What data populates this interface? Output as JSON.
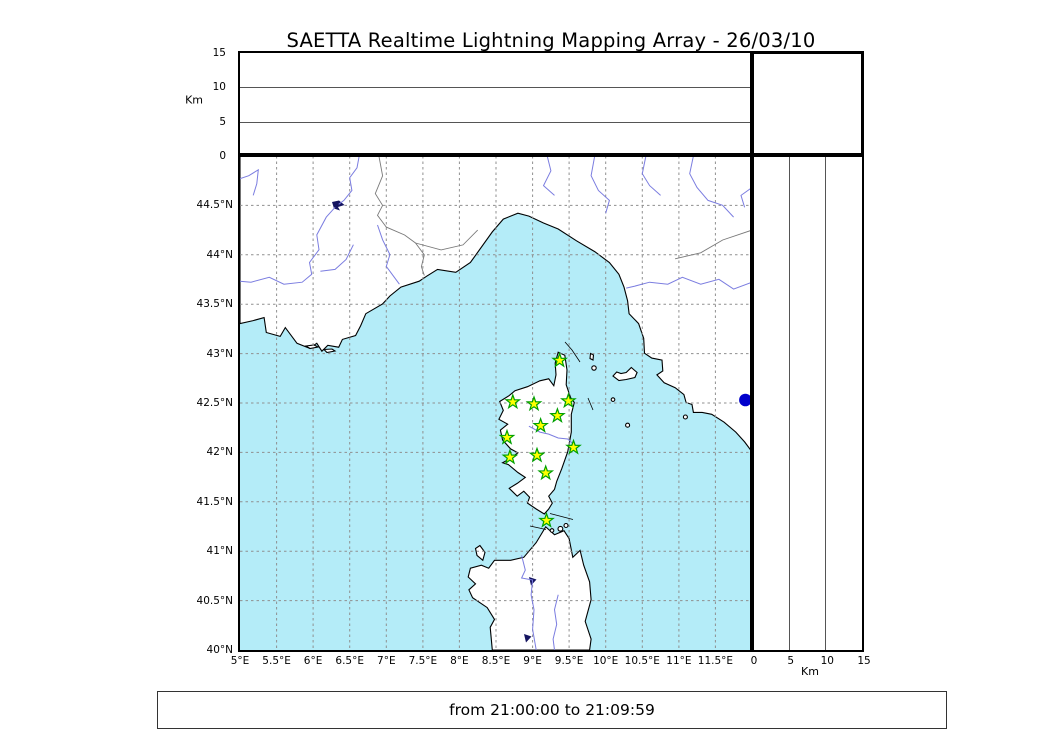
{
  "title": "SAETTA Realtime Lightning Mapping Array - 26/03/10",
  "footer": {
    "time_range": "from 21:00:00 to 21:09:59"
  },
  "colors": {
    "sea": "#b4ecf8",
    "land": "#ffffff",
    "coastline": "#000000",
    "river": "#7b7de0",
    "border_line": "#7a7a7a",
    "grid": "#8f8f8f",
    "panel_grid": "#555555",
    "station_fill": "#ffff00",
    "station_stroke": "#00a000",
    "event_dot": "#0000cc",
    "frame": "#000000",
    "lake": "#141460"
  },
  "map_panel": {
    "lon_min": 5,
    "lon_max": 12,
    "lat_min": 40,
    "lat_max": 45,
    "grid_step_deg": 0.5,
    "lon_ticks": [
      {
        "v": 5,
        "label": "5°E"
      },
      {
        "v": 5.5,
        "label": "5.5°E"
      },
      {
        "v": 6,
        "label": "6°E"
      },
      {
        "v": 6.5,
        "label": "6.5°E"
      },
      {
        "v": 7,
        "label": "7°E"
      },
      {
        "v": 7.5,
        "label": "7.5°E"
      },
      {
        "v": 8,
        "label": "8°E"
      },
      {
        "v": 8.5,
        "label": "8.5°E"
      },
      {
        "v": 9,
        "label": "9°E"
      },
      {
        "v": 9.5,
        "label": "9.5°E"
      },
      {
        "v": 10,
        "label": "10°E"
      },
      {
        "v": 10.5,
        "label": "10.5°E"
      },
      {
        "v": 11,
        "label": "11°E"
      },
      {
        "v": 11.5,
        "label": "11.5°E"
      }
    ],
    "lat_ticks": [
      {
        "v": 44.5,
        "label": "44.5°N"
      },
      {
        "v": 44,
        "label": "44°N"
      },
      {
        "v": 43.5,
        "label": "43.5°N"
      },
      {
        "v": 43,
        "label": "43°N"
      },
      {
        "v": 42.5,
        "label": "42.5°N"
      },
      {
        "v": 42,
        "label": "42°N"
      },
      {
        "v": 41.5,
        "label": "41.5°N"
      },
      {
        "v": 41,
        "label": "41°N"
      },
      {
        "v": 40.5,
        "label": "40.5°N"
      },
      {
        "v": 40,
        "label": "40°N"
      }
    ]
  },
  "altitude_panel": {
    "unit_label": "Km",
    "km_min": 0,
    "km_max": 15,
    "ticks": [
      {
        "v": 0,
        "label": "0"
      },
      {
        "v": 5,
        "label": "5"
      },
      {
        "v": 10,
        "label": "10"
      },
      {
        "v": 15,
        "label": "15"
      }
    ],
    "gridlines_km": [
      5,
      10
    ]
  },
  "right_panel": {
    "unit_label": "Km",
    "km_min": 0,
    "km_max": 15,
    "ticks": [
      {
        "v": 0,
        "label": "0"
      },
      {
        "v": 5,
        "label": "5"
      },
      {
        "v": 10,
        "label": "10"
      },
      {
        "v": 15,
        "label": "15"
      }
    ],
    "gridlines_km": [
      5,
      10
    ]
  },
  "stations": [
    {
      "lon": 9.37,
      "lat": 42.93
    },
    {
      "lon": 8.73,
      "lat": 42.51
    },
    {
      "lon": 9.02,
      "lat": 42.49
    },
    {
      "lon": 9.49,
      "lat": 42.52
    },
    {
      "lon": 9.34,
      "lat": 42.37
    },
    {
      "lon": 9.11,
      "lat": 42.27
    },
    {
      "lon": 8.65,
      "lat": 42.15
    },
    {
      "lon": 9.56,
      "lat": 42.05
    },
    {
      "lon": 8.69,
      "lat": 41.95
    },
    {
      "lon": 9.06,
      "lat": 41.97
    },
    {
      "lon": 9.18,
      "lat": 41.79
    },
    {
      "lon": 9.19,
      "lat": 41.31
    }
  ],
  "events": [
    {
      "lon": 11.91,
      "lat": 42.53
    }
  ],
  "chart_data": {
    "type": "scatter",
    "title": "SAETTA Realtime Lightning Mapping Array - 26/03/10",
    "time_window": "from 21:00:00 to 21:09:59",
    "panels": [
      {
        "name": "altitude-vs-longitude",
        "ylabel": "Km",
        "ylim": [
          0,
          15
        ],
        "yticks": [
          0,
          5,
          10,
          15
        ],
        "xlim_lon": [
          5,
          12
        ],
        "points": []
      },
      {
        "name": "map",
        "xlim_lon": [
          5,
          12
        ],
        "ylim_lat": [
          40,
          45
        ],
        "grid_step_deg": 0.5,
        "station_marker": "star",
        "station_count": 12,
        "stations_lon": [
          9.37,
          8.73,
          9.02,
          9.49,
          9.34,
          9.11,
          8.65,
          9.56,
          8.69,
          9.06,
          9.18,
          9.19
        ],
        "stations_lat": [
          42.93,
          42.51,
          42.49,
          42.52,
          42.37,
          42.27,
          42.15,
          42.05,
          41.95,
          41.97,
          41.79,
          41.31
        ],
        "event_points": [
          {
            "lon": 11.91,
            "lat": 42.53
          }
        ]
      },
      {
        "name": "altitude-vs-latitude",
        "xlabel": "Km",
        "xlim": [
          0,
          15
        ],
        "xticks": [
          0,
          5,
          10,
          15
        ],
        "points": []
      }
    ]
  }
}
